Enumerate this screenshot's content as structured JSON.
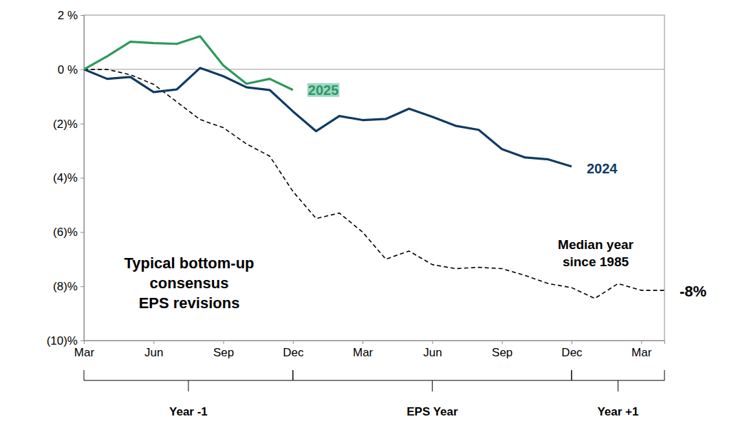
{
  "chart_data": {
    "type": "line",
    "annotation": [
      "Typical bottom-up",
      "consensus",
      "EPS revisions"
    ],
    "categories": [
      "Mar",
      null,
      null,
      "Jun",
      null,
      null,
      "Sep",
      null,
      null,
      "Dec",
      null,
      null,
      "Mar",
      null,
      null,
      "Jun",
      null,
      null,
      "Sep",
      null,
      null,
      "Dec",
      null,
      null,
      "Mar",
      null
    ],
    "periods": [
      {
        "label": "Year -1",
        "start": 0,
        "end": 9
      },
      {
        "label": "EPS Year",
        "start": 9,
        "end": 21
      },
      {
        "label": "Year +1",
        "start": 21,
        "end": 25
      }
    ],
    "series": [
      {
        "name": "2025",
        "color": "#2a9a5a",
        "line_style": "solid",
        "values": [
          0,
          0.48,
          1.02,
          0.97,
          0.94,
          1.22,
          0.15,
          -0.53,
          -0.35,
          -0.76,
          null,
          null,
          null,
          null,
          null,
          null,
          null,
          null,
          null,
          null,
          null,
          null,
          null,
          null,
          null,
          null
        ]
      },
      {
        "name": "2024",
        "color": "#0f3a63",
        "line_style": "solid",
        "values": [
          0,
          -0.35,
          -0.28,
          -0.84,
          -0.74,
          0.05,
          -0.25,
          -0.66,
          -0.76,
          -1.55,
          -2.28,
          -1.72,
          -1.87,
          -1.83,
          -1.45,
          -1.75,
          -2.08,
          -2.23,
          -2.94,
          -3.25,
          -3.32,
          -3.58,
          null,
          null,
          null,
          null
        ]
      },
      {
        "name": "Median year since 1985",
        "color": "#000000",
        "line_style": "dashed",
        "end_label": "-8%",
        "values": [
          0,
          0,
          -0.2,
          -0.55,
          -1.2,
          -1.85,
          -2.15,
          -2.75,
          -3.2,
          -4.5,
          -5.5,
          -5.3,
          -6.0,
          -7.0,
          -6.7,
          -7.2,
          -7.35,
          -7.3,
          -7.35,
          -7.6,
          -7.9,
          -8.05,
          -8.45,
          -7.9,
          -8.15,
          -8.15
        ]
      }
    ],
    "ylim": [
      -10,
      2
    ],
    "yticks": [
      {
        "value": -10,
        "label": "(10)%"
      },
      {
        "value": -8,
        "label": "(8)%"
      },
      {
        "value": -6,
        "label": "(6)%"
      },
      {
        "value": -4,
        "label": "(4)%"
      },
      {
        "value": -2,
        "label": "(2)%"
      },
      {
        "value": 0,
        "label": "0 %"
      },
      {
        "value": 2,
        "label": "2 %"
      }
    ],
    "grid": false
  }
}
